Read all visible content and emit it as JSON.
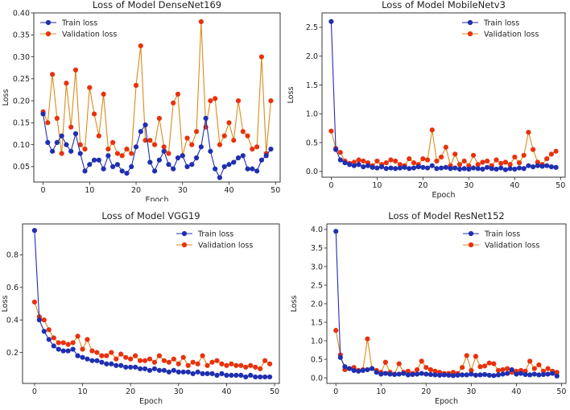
{
  "colors": {
    "train": "#1f2fb0",
    "val": "#e8320e",
    "val_line": "#d98c1a",
    "train_line": "#1f2fb0"
  },
  "chart_data": [
    {
      "type": "line",
      "title": "Loss of Model DenseNet169",
      "xlabel": "Epoch",
      "ylabel": "Loss",
      "xlim": [
        -2,
        51
      ],
      "ylim": [
        0.015,
        0.4
      ],
      "xticks": [
        0,
        10,
        20,
        30,
        40,
        50
      ],
      "yticks": [
        0.05,
        0.1,
        0.15,
        0.2,
        0.25,
        0.3,
        0.35,
        0.4
      ],
      "ytick_labels": [
        "0.05",
        "0.10",
        "0.15",
        "0.20",
        "0.25",
        "0.30",
        "0.35",
        "0.40"
      ],
      "xtick_labels": [
        "0",
        "10",
        "20",
        "30",
        "40",
        "50"
      ],
      "legend": "top-left",
      "series": [
        {
          "name": "Train loss",
          "values": [
            0.17,
            0.105,
            0.085,
            0.105,
            0.12,
            0.1,
            0.085,
            0.125,
            0.08,
            0.04,
            0.055,
            0.065,
            0.065,
            0.045,
            0.075,
            0.05,
            0.055,
            0.04,
            0.035,
            0.05,
            0.095,
            0.13,
            0.145,
            0.06,
            0.04,
            0.065,
            0.085,
            0.055,
            0.045,
            0.07,
            0.075,
            0.05,
            0.055,
            0.07,
            0.095,
            0.16,
            0.085,
            0.045,
            0.025,
            0.05,
            0.055,
            0.06,
            0.07,
            0.075,
            0.045,
            0.045,
            0.04,
            0.065,
            0.075,
            0.09
          ]
        },
        {
          "name": "Validation loss",
          "values": [
            0.175,
            0.15,
            0.26,
            0.16,
            0.08,
            0.24,
            0.14,
            0.27,
            0.1,
            0.09,
            0.23,
            0.17,
            0.12,
            0.215,
            0.09,
            0.105,
            0.08,
            0.075,
            0.09,
            0.08,
            0.235,
            0.325,
            0.11,
            0.11,
            0.1,
            0.16,
            0.095,
            0.08,
            0.195,
            0.215,
            0.075,
            0.115,
            0.1,
            0.13,
            0.38,
            0.14,
            0.2,
            0.205,
            0.1,
            0.12,
            0.15,
            0.11,
            0.2,
            0.13,
            0.12,
            0.09,
            0.095,
            0.3,
            0.08,
            0.2
          ]
        }
      ]
    },
    {
      "type": "line",
      "title": "Loss of Model MobileNetv3",
      "xlabel": "Epoch",
      "ylabel": "Loss",
      "xlim": [
        -2,
        51
      ],
      "ylim": [
        -0.1,
        2.75
      ],
      "xticks": [
        0,
        10,
        20,
        30,
        40,
        50
      ],
      "yticks": [
        0,
        0.5,
        1.0,
        1.5,
        2.0,
        2.5
      ],
      "ytick_labels": [
        "0.0",
        "0.5",
        "1.0",
        "1.5",
        "2.0",
        "2.5"
      ],
      "xtick_labels": [
        "0",
        "10",
        "20",
        "30",
        "40",
        "50"
      ],
      "legend": "top-right",
      "series": [
        {
          "name": "Train loss",
          "values": [
            2.6,
            0.38,
            0.2,
            0.15,
            0.12,
            0.1,
            0.12,
            0.08,
            0.1,
            0.07,
            0.06,
            0.08,
            0.05,
            0.06,
            0.05,
            0.06,
            0.07,
            0.05,
            0.06,
            0.08,
            0.07,
            0.06,
            0.1,
            0.05,
            0.06,
            0.07,
            0.05,
            0.06,
            0.04,
            0.05,
            0.04,
            0.06,
            0.05,
            0.04,
            0.07,
            0.05,
            0.04,
            0.06,
            0.03,
            0.05,
            0.04,
            0.06,
            0.05,
            0.1,
            0.08,
            0.1,
            0.09,
            0.1,
            0.08,
            0.07
          ]
        },
        {
          "name": "Validation loss",
          "values": [
            0.7,
            0.4,
            0.33,
            0.18,
            0.14,
            0.16,
            0.2,
            0.18,
            0.15,
            0.1,
            0.18,
            0.12,
            0.15,
            0.2,
            0.18,
            0.12,
            0.1,
            0.22,
            0.15,
            0.12,
            0.22,
            0.2,
            0.72,
            0.18,
            0.25,
            0.42,
            0.1,
            0.3,
            0.12,
            0.18,
            0.1,
            0.28,
            0.12,
            0.16,
            0.18,
            0.1,
            0.2,
            0.14,
            0.16,
            0.12,
            0.25,
            0.15,
            0.28,
            0.68,
            0.38,
            0.16,
            0.12,
            0.22,
            0.3,
            0.35
          ]
        }
      ]
    },
    {
      "type": "line",
      "title": "Loss of Model VGG19",
      "xlabel": "Epoch",
      "ylabel": "Loss",
      "xlim": [
        -2.5,
        51
      ],
      "ylim": [
        0.01,
        0.99
      ],
      "xticks": [
        0,
        10,
        20,
        30,
        40,
        50
      ],
      "yticks": [
        0.2,
        0.4,
        0.6,
        0.8
      ],
      "ytick_labels": [
        "0.2",
        "0.4",
        "0.6",
        "0.8"
      ],
      "xtick_labels": [
        "0",
        "10",
        "20",
        "30",
        "40",
        "50"
      ],
      "legend": "top-right",
      "series": [
        {
          "name": "Train loss",
          "values": [
            0.95,
            0.4,
            0.33,
            0.28,
            0.24,
            0.22,
            0.21,
            0.21,
            0.22,
            0.18,
            0.17,
            0.16,
            0.15,
            0.15,
            0.14,
            0.13,
            0.13,
            0.12,
            0.12,
            0.11,
            0.11,
            0.11,
            0.1,
            0.1,
            0.09,
            0.1,
            0.09,
            0.09,
            0.08,
            0.09,
            0.08,
            0.08,
            0.08,
            0.07,
            0.08,
            0.07,
            0.07,
            0.07,
            0.06,
            0.07,
            0.06,
            0.06,
            0.06,
            0.06,
            0.05,
            0.06,
            0.05,
            0.05,
            0.05,
            0.05
          ]
        },
        {
          "name": "Validation loss",
          "values": [
            0.51,
            0.42,
            0.4,
            0.34,
            0.29,
            0.26,
            0.26,
            0.25,
            0.26,
            0.3,
            0.22,
            0.28,
            0.21,
            0.2,
            0.18,
            0.18,
            0.2,
            0.16,
            0.19,
            0.17,
            0.16,
            0.18,
            0.15,
            0.15,
            0.16,
            0.14,
            0.18,
            0.15,
            0.14,
            0.16,
            0.13,
            0.17,
            0.12,
            0.14,
            0.13,
            0.18,
            0.12,
            0.14,
            0.15,
            0.13,
            0.12,
            0.13,
            0.12,
            0.12,
            0.11,
            0.12,
            0.11,
            0.1,
            0.15,
            0.13
          ]
        }
      ]
    },
    {
      "type": "line",
      "title": "Loss of Model ResNet152",
      "xlabel": "Epoch",
      "ylabel": "Loss",
      "xlim": [
        -2,
        51
      ],
      "ylim": [
        -0.15,
        4.15
      ],
      "xticks": [
        0,
        10,
        20,
        30,
        40,
        50
      ],
      "yticks": [
        0,
        0.5,
        1.0,
        1.5,
        2.0,
        2.5,
        3.0,
        3.5,
        4.0
      ],
      "ytick_labels": [
        "0.0",
        "0.5",
        "1.0",
        "1.5",
        "2.0",
        "2.5",
        "3.0",
        "3.5",
        "4.0"
      ],
      "xtick_labels": [
        "0",
        "10",
        "20",
        "30",
        "40",
        "50"
      ],
      "legend": "top-right",
      "series": [
        {
          "name": "Train loss",
          "values": [
            3.95,
            0.55,
            0.3,
            0.25,
            0.2,
            0.18,
            0.2,
            0.22,
            0.25,
            0.15,
            0.1,
            0.12,
            0.1,
            0.09,
            0.1,
            0.12,
            0.08,
            0.09,
            0.1,
            0.12,
            0.1,
            0.09,
            0.08,
            0.07,
            0.08,
            0.07,
            0.06,
            0.07,
            0.08,
            0.08,
            0.1,
            0.07,
            0.08,
            0.09,
            0.07,
            0.06,
            0.08,
            0.1,
            0.12,
            0.22,
            0.1,
            0.12,
            0.09,
            0.08,
            0.1,
            0.08,
            0.09,
            0.1,
            0.12,
            0.05
          ]
        },
        {
          "name": "Validation loss",
          "values": [
            1.28,
            0.62,
            0.22,
            0.25,
            0.28,
            0.2,
            0.22,
            1.05,
            0.25,
            0.2,
            0.15,
            0.42,
            0.15,
            0.1,
            0.38,
            0.15,
            0.18,
            0.12,
            0.22,
            0.45,
            0.28,
            0.22,
            0.18,
            0.15,
            0.12,
            0.12,
            0.15,
            0.12,
            0.28,
            0.6,
            0.2,
            0.58,
            0.3,
            0.32,
            0.4,
            0.38,
            0.2,
            0.22,
            0.25,
            0.15,
            0.18,
            0.2,
            0.18,
            0.45,
            0.25,
            0.35,
            0.18,
            0.25,
            0.18,
            0.15
          ]
        }
      ]
    }
  ]
}
